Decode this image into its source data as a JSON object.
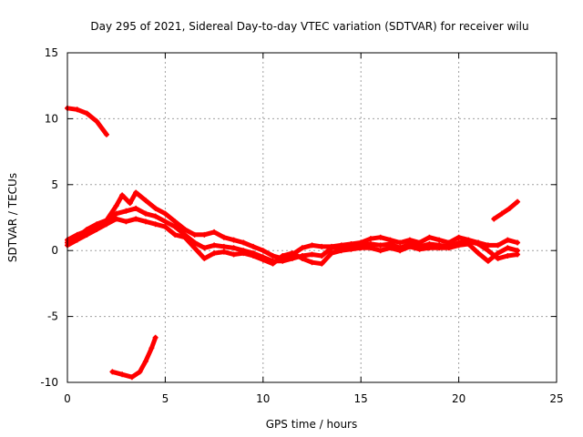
{
  "chart_data": {
    "type": "scatter",
    "title": "Day 295 of 2021, Sidereal Day-to-day VTEC variation (SDTVAR) for receiver wilu",
    "xlabel": "GPS time / hours",
    "ylabel": "SDTVAR / TECUs",
    "xlim": [
      0,
      25
    ],
    "ylim": [
      -10,
      15
    ],
    "xticks": [
      0,
      5,
      10,
      15,
      20,
      25
    ],
    "yticks": [
      -10,
      -5,
      0,
      5,
      10,
      15
    ],
    "grid": true,
    "marker": "+",
    "color": "#ff0000",
    "series": [
      {
        "name": "segment-high-early",
        "points": [
          [
            0,
            10.8
          ],
          [
            0.5,
            10.7
          ],
          [
            1.0,
            10.4
          ],
          [
            1.5,
            9.8
          ],
          [
            2.0,
            8.8
          ]
        ]
      },
      {
        "name": "segment-low-early",
        "points": [
          [
            2.3,
            -9.2
          ],
          [
            2.8,
            -9.4
          ],
          [
            3.3,
            -9.6
          ],
          [
            3.7,
            -9.2
          ],
          [
            4.0,
            -8.4
          ],
          [
            4.3,
            -7.4
          ],
          [
            4.5,
            -6.6
          ]
        ]
      },
      {
        "name": "segment-main-upper",
        "points": [
          [
            0,
            0.6
          ],
          [
            0.5,
            1.0
          ],
          [
            1.0,
            1.6
          ],
          [
            1.5,
            2.0
          ],
          [
            2.0,
            2.3
          ],
          [
            2.5,
            3.4
          ],
          [
            2.8,
            4.2
          ],
          [
            3.2,
            3.6
          ],
          [
            3.5,
            4.4
          ],
          [
            4.0,
            3.8
          ],
          [
            4.5,
            3.2
          ],
          [
            5.0,
            2.8
          ],
          [
            5.5,
            2.2
          ],
          [
            6.0,
            1.6
          ],
          [
            6.5,
            1.2
          ],
          [
            7.0,
            1.2
          ],
          [
            7.5,
            1.4
          ],
          [
            8.0,
            1.0
          ],
          [
            8.5,
            0.8
          ],
          [
            9.0,
            0.6
          ],
          [
            9.5,
            0.3
          ],
          [
            10.0,
            0.0
          ],
          [
            10.5,
            -0.4
          ],
          [
            11.0,
            -0.6
          ],
          [
            11.5,
            -0.3
          ],
          [
            12.0,
            0.2
          ],
          [
            12.5,
            0.4
          ],
          [
            13.0,
            0.3
          ],
          [
            13.5,
            0.3
          ],
          [
            14.0,
            0.4
          ],
          [
            14.5,
            0.5
          ],
          [
            15.0,
            0.6
          ],
          [
            15.5,
            0.9
          ],
          [
            16.0,
            1.0
          ],
          [
            16.5,
            0.8
          ],
          [
            17.0,
            0.6
          ],
          [
            17.5,
            0.8
          ],
          [
            18.0,
            0.6
          ],
          [
            18.5,
            1.0
          ],
          [
            19.0,
            0.8
          ],
          [
            19.5,
            0.6
          ],
          [
            20.0,
            1.0
          ],
          [
            20.5,
            0.8
          ],
          [
            21.0,
            0.6
          ],
          [
            21.5,
            0.4
          ],
          [
            22.0,
            0.4
          ],
          [
            22.5,
            0.8
          ],
          [
            23.0,
            0.6
          ]
        ]
      },
      {
        "name": "segment-main-middle",
        "points": [
          [
            0,
            0.8
          ],
          [
            0.5,
            1.2
          ],
          [
            1.0,
            1.5
          ],
          [
            1.5,
            1.8
          ],
          [
            2.0,
            2.2
          ],
          [
            2.5,
            2.8
          ],
          [
            3.0,
            3.0
          ],
          [
            3.5,
            3.2
          ],
          [
            4.0,
            2.8
          ],
          [
            4.5,
            2.6
          ],
          [
            5.0,
            2.2
          ],
          [
            5.5,
            1.8
          ],
          [
            6.0,
            1.2
          ],
          [
            6.5,
            0.6
          ],
          [
            7.0,
            0.2
          ],
          [
            7.5,
            0.4
          ],
          [
            8.0,
            0.3
          ],
          [
            8.5,
            0.2
          ],
          [
            9.0,
            0.0
          ],
          [
            9.5,
            -0.2
          ],
          [
            10.0,
            -0.5
          ],
          [
            10.5,
            -0.8
          ],
          [
            11.0,
            -0.8
          ],
          [
            11.5,
            -0.6
          ],
          [
            12.0,
            -0.4
          ],
          [
            12.5,
            -0.3
          ],
          [
            13.0,
            -0.4
          ],
          [
            13.5,
            0.2
          ],
          [
            14.0,
            0.2
          ],
          [
            14.5,
            0.3
          ],
          [
            15.0,
            0.4
          ],
          [
            15.5,
            0.5
          ],
          [
            16.0,
            0.4
          ],
          [
            16.5,
            0.5
          ],
          [
            17.0,
            0.2
          ],
          [
            17.5,
            0.5
          ],
          [
            18.0,
            0.3
          ],
          [
            18.5,
            0.5
          ],
          [
            19.0,
            0.4
          ],
          [
            19.5,
            0.3
          ],
          [
            20.0,
            0.6
          ],
          [
            20.5,
            0.7
          ],
          [
            21.0,
            0.5
          ],
          [
            21.5,
            0.0
          ],
          [
            22.0,
            -0.6
          ],
          [
            22.5,
            -0.4
          ],
          [
            23.0,
            -0.3
          ]
        ]
      },
      {
        "name": "segment-main-lower",
        "points": [
          [
            0,
            0.4
          ],
          [
            0.5,
            0.8
          ],
          [
            1.0,
            1.2
          ],
          [
            1.5,
            1.6
          ],
          [
            2.0,
            2.0
          ],
          [
            2.5,
            2.4
          ],
          [
            3.0,
            2.2
          ],
          [
            3.5,
            2.4
          ],
          [
            4.0,
            2.2
          ],
          [
            4.5,
            2.0
          ],
          [
            5.0,
            1.8
          ],
          [
            5.5,
            1.2
          ],
          [
            6.0,
            1.0
          ],
          [
            6.5,
            0.2
          ],
          [
            7.0,
            -0.6
          ],
          [
            7.5,
            -0.2
          ],
          [
            8.0,
            -0.1
          ],
          [
            8.5,
            -0.3
          ],
          [
            9.0,
            -0.2
          ],
          [
            9.5,
            -0.4
          ],
          [
            10.0,
            -0.7
          ],
          [
            10.5,
            -1.0
          ],
          [
            11.0,
            -0.4
          ],
          [
            11.5,
            -0.2
          ],
          [
            12.0,
            -0.6
          ],
          [
            12.5,
            -0.9
          ],
          [
            13.0,
            -1.0
          ],
          [
            13.5,
            -0.2
          ],
          [
            14.0,
            0.0
          ],
          [
            14.5,
            0.1
          ],
          [
            15.0,
            0.2
          ],
          [
            15.5,
            0.2
          ],
          [
            16.0,
            0.0
          ],
          [
            16.5,
            0.2
          ],
          [
            17.0,
            0.0
          ],
          [
            17.5,
            0.3
          ],
          [
            18.0,
            0.1
          ],
          [
            18.5,
            0.2
          ],
          [
            19.0,
            0.2
          ],
          [
            19.5,
            0.2
          ],
          [
            20.0,
            0.4
          ],
          [
            20.5,
            0.5
          ],
          [
            21.0,
            -0.2
          ],
          [
            21.5,
            -0.8
          ],
          [
            22.0,
            -0.2
          ],
          [
            22.5,
            0.2
          ],
          [
            23.0,
            0.0
          ]
        ]
      },
      {
        "name": "segment-end-rise",
        "points": [
          [
            21.8,
            2.4
          ],
          [
            22.2,
            2.8
          ],
          [
            22.6,
            3.2
          ],
          [
            23.0,
            3.7
          ]
        ]
      }
    ]
  }
}
